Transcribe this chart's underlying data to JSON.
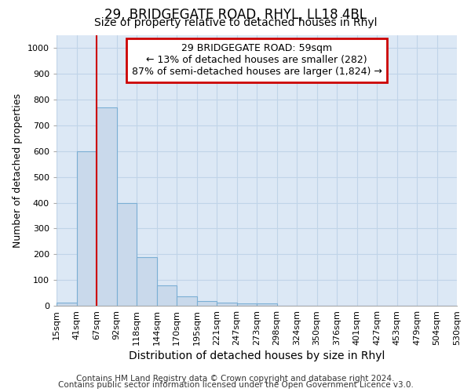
{
  "title1": "29, BRIDGEGATE ROAD, RHYL, LL18 4BL",
  "title2": "Size of property relative to detached houses in Rhyl",
  "xlabel": "Distribution of detached houses by size in Rhyl",
  "ylabel": "Number of detached properties",
  "bar_values": [
    13,
    600,
    770,
    400,
    190,
    78,
    38,
    17,
    13,
    10,
    8,
    0,
    0,
    0,
    0,
    0,
    0,
    0,
    0,
    0
  ],
  "categories": [
    "15sqm",
    "41sqm",
    "67sqm",
    "92sqm",
    "118sqm",
    "144sqm",
    "170sqm",
    "195sqm",
    "221sqm",
    "247sqm",
    "273sqm",
    "298sqm",
    "324sqm",
    "350sqm",
    "376sqm",
    "401sqm",
    "427sqm",
    "453sqm",
    "479sqm",
    "504sqm",
    "530sqm"
  ],
  "bar_color": "#c9d9eb",
  "bar_edge_color": "#7bafd4",
  "grid_color": "#c0d4e8",
  "background_color": "#dce8f5",
  "annotation_box_text": "29 BRIDGEGATE ROAD: 59sqm\n← 13% of detached houses are smaller (282)\n87% of semi-detached houses are larger (1,824) →",
  "annotation_box_color": "#cc0000",
  "red_line_x": 2.0,
  "ylim": [
    0,
    1050
  ],
  "yticks": [
    0,
    100,
    200,
    300,
    400,
    500,
    600,
    700,
    800,
    900,
    1000
  ],
  "footnote1": "Contains HM Land Registry data © Crown copyright and database right 2024.",
  "footnote2": "Contains public sector information licensed under the Open Government Licence v3.0.",
  "title1_fontsize": 12,
  "title2_fontsize": 10,
  "xlabel_fontsize": 10,
  "ylabel_fontsize": 9,
  "tick_fontsize": 8,
  "footnote_fontsize": 7.5
}
